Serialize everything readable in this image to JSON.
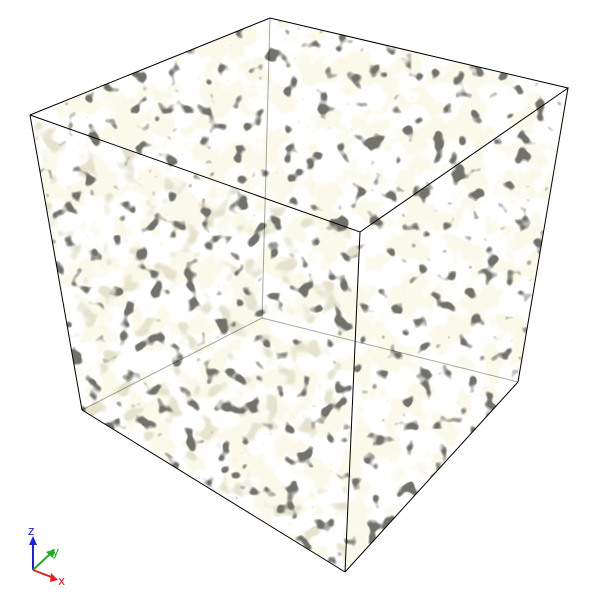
{
  "scene": {
    "background": "#ffffff",
    "solid_color": "#f6f4d2",
    "solid_shade": "#c9c6a2",
    "pore_color": "#2b2c28",
    "edge_color": "#000000"
  },
  "axes": {
    "z": {
      "label": "z",
      "color": "#2222cc"
    },
    "y": {
      "label": "y",
      "color": "#22aa22"
    },
    "x": {
      "label": "x",
      "color": "#dd2222"
    }
  }
}
